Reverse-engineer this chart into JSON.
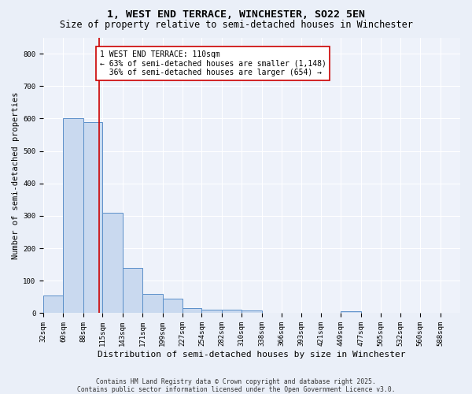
{
  "title1": "1, WEST END TERRACE, WINCHESTER, SO22 5EN",
  "title2": "Size of property relative to semi-detached houses in Winchester",
  "xlabel": "Distribution of semi-detached houses by size in Winchester",
  "ylabel": "Number of semi-detached properties",
  "bin_edges": [
    32,
    60,
    88,
    115,
    143,
    171,
    199,
    227,
    254,
    282,
    310,
    338,
    366,
    393,
    421,
    449,
    477,
    505,
    532,
    560,
    588
  ],
  "bar_heights": [
    55,
    600,
    590,
    310,
    140,
    60,
    45,
    15,
    12,
    10,
    8,
    0,
    0,
    0,
    0,
    5,
    0,
    0,
    0,
    0
  ],
  "bar_color": "#c9d9ef",
  "bar_edgecolor": "#5b8fc9",
  "property_size": 110,
  "red_line_color": "#cc0000",
  "annotation_text": "1 WEST END TERRACE: 110sqm\n← 63% of semi-detached houses are smaller (1,148)\n  36% of semi-detached houses are larger (654) →",
  "annotation_box_color": "#ffffff",
  "annotation_box_edgecolor": "#cc0000",
  "ylim": [
    0,
    850
  ],
  "yticks": [
    0,
    100,
    200,
    300,
    400,
    500,
    600,
    700,
    800
  ],
  "footer1": "Contains HM Land Registry data © Crown copyright and database right 2025.",
  "footer2": "Contains public sector information licensed under the Open Government Licence v3.0.",
  "bg_color": "#eaeff8",
  "plot_bg_color": "#eef2fa",
  "title_fontsize": 9.5,
  "subtitle_fontsize": 8.5,
  "xlabel_fontsize": 8.0,
  "ylabel_fontsize": 7.5,
  "tick_fontsize": 6.5,
  "annotation_fontsize": 7.0,
  "footer_fontsize": 5.8
}
